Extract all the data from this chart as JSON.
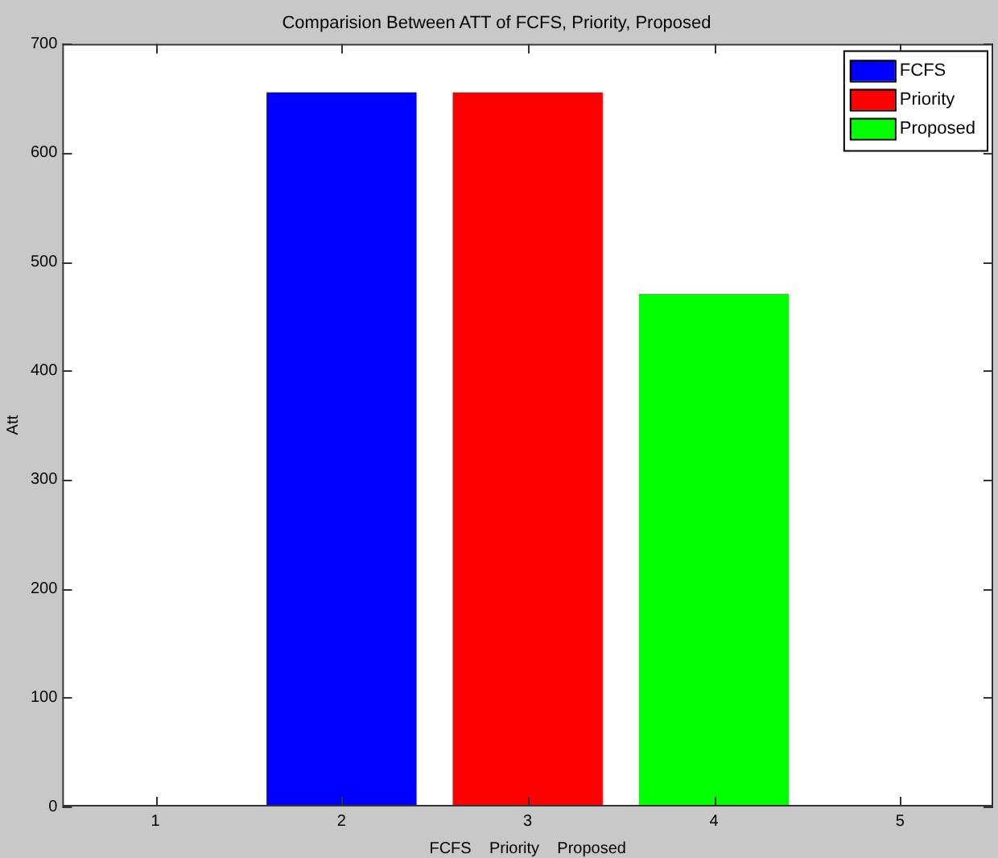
{
  "chart_data": {
    "type": "bar",
    "title": "Comparision Between ATT of FCFS, Priority, Proposed",
    "xlabel": "FCFS    Priority    Proposed",
    "ylabel": "Att",
    "series": [
      {
        "name": "FCFS",
        "color": "#0000ff",
        "x": [
          2
        ],
        "values": [
          655
        ]
      },
      {
        "name": "Priority",
        "color": "#ff0000",
        "x": [
          3
        ],
        "values": [
          655
        ]
      },
      {
        "name": "Proposed",
        "color": "#00ff00",
        "x": [
          4
        ],
        "values": [
          470
        ]
      }
    ],
    "xlim": [
      0.5,
      5.5
    ],
    "xticks": [
      1,
      2,
      3,
      4,
      5
    ],
    "ylim": [
      0,
      700
    ],
    "yticks": [
      0,
      100,
      200,
      300,
      400,
      500,
      600,
      700
    ],
    "grid": false,
    "legend": "top right"
  }
}
